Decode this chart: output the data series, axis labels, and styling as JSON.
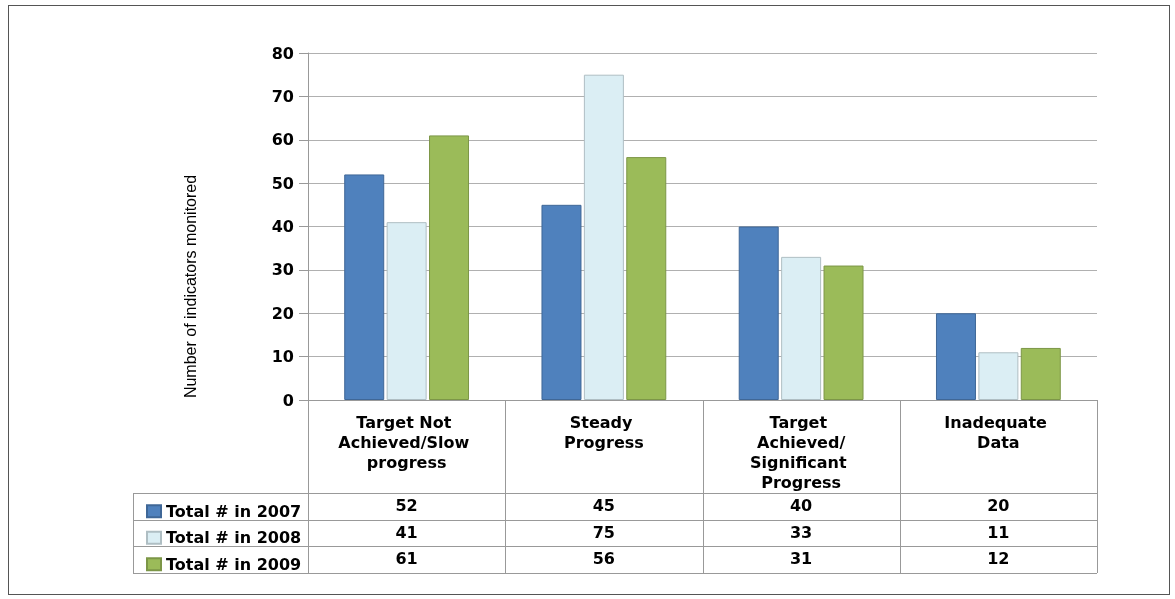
{
  "chart_data": {
    "type": "bar",
    "ylabel": "Number of indicators monitored",
    "categories": [
      "Target Not Achieved/Slow progress",
      "Steady Progress",
      "Target Achieved/Significant Progress",
      "Inadequate Data"
    ],
    "series": [
      {
        "name": "Total # in 2007",
        "color": "#4f81bd",
        "values": [
          52,
          45,
          40,
          20
        ]
      },
      {
        "name": "Total # in 2008",
        "color": "#dbeef4",
        "values": [
          41,
          75,
          33,
          11
        ]
      },
      {
        "name": "Total # in 2009",
        "color": "#9bbb59",
        "values": [
          61,
          56,
          31,
          12
        ]
      }
    ],
    "ylim": [
      0,
      80
    ],
    "yticks": [
      0,
      10,
      20,
      30,
      40,
      50,
      60,
      70,
      80
    ],
    "grid": "y",
    "legend": "bottom left",
    "data_labels": true
  }
}
